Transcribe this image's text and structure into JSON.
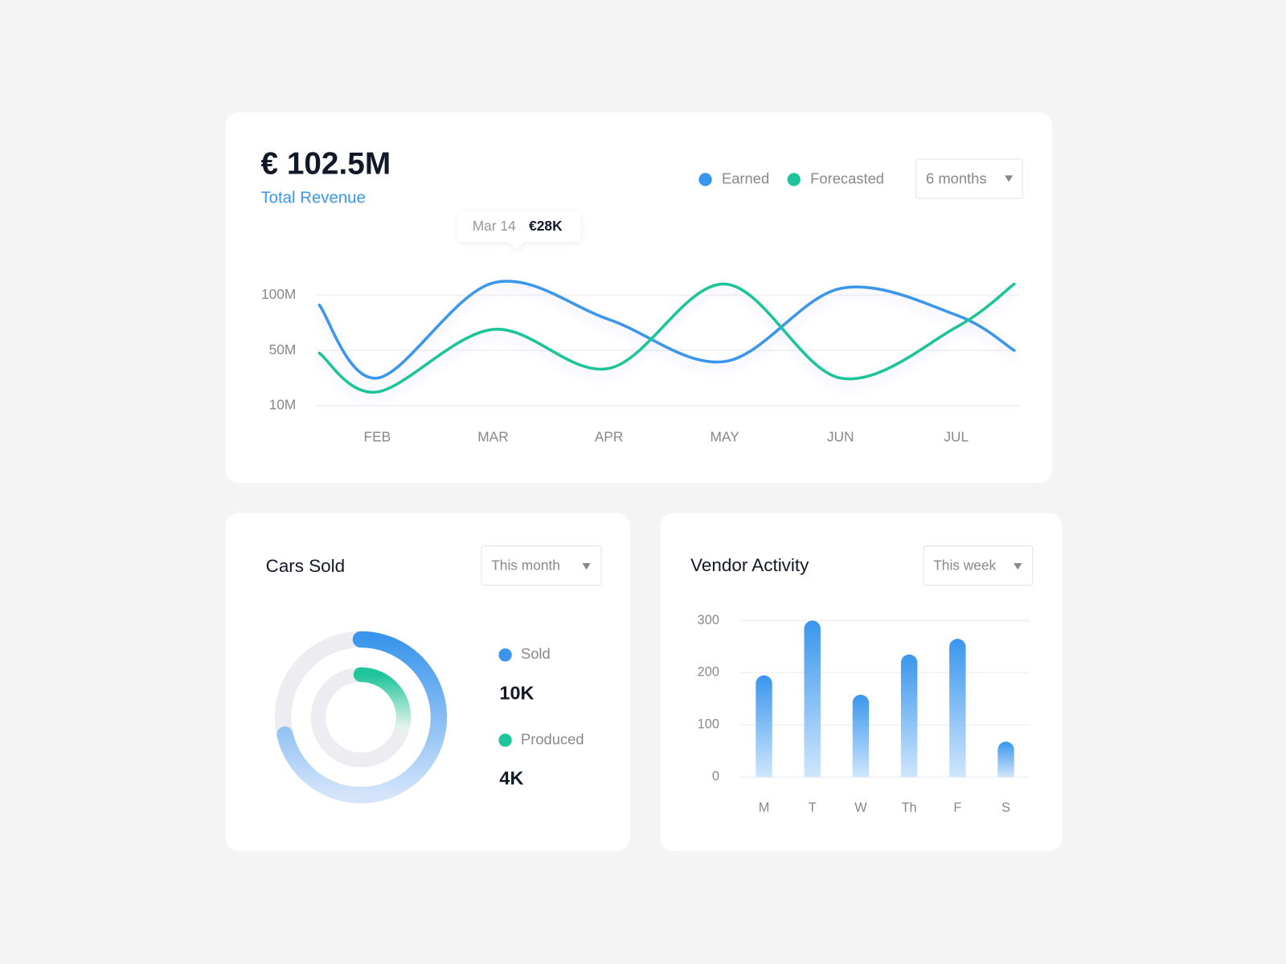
{
  "chart_data": [
    {
      "type": "line",
      "headline": "€ 102.5M",
      "subtitle": "Total Revenue",
      "dropdown": "6 months",
      "tooltip": {
        "date": "Mar 14",
        "value": "€28K"
      },
      "categories": [
        null,
        "FEB",
        "MAR",
        "APR",
        "MAY",
        "JUN",
        "JUL",
        null
      ],
      "series": [
        {
          "name": "Earned",
          "color": "#3a96ec",
          "values": [
            91,
            30,
            111,
            78,
            42,
            106,
            82,
            50
          ]
        },
        {
          "name": "Forecasted",
          "color": "#1ec49a",
          "values": [
            48,
            20,
            69,
            37,
            110,
            30,
            71,
            110
          ]
        }
      ],
      "ylim": [
        10,
        130
      ],
      "yticks": [
        {
          "value": 10,
          "label": "10M"
        },
        {
          "value": 50,
          "label": "50M"
        },
        {
          "value": 100,
          "label": "100M"
        }
      ],
      "grid": true
    },
    {
      "type": "donut",
      "title": "Cars Sold",
      "dropdown": "This month",
      "categories": [
        "Sold",
        "Produced"
      ],
      "values": [
        10000,
        4000
      ],
      "value_labels": [
        "10K",
        "4K"
      ],
      "colors": [
        "#3a96ec",
        "#1ec49a"
      ]
    },
    {
      "type": "bar",
      "title": "Vendor Activity",
      "dropdown": "This week",
      "categories": [
        "M",
        "T",
        "W",
        "Th",
        "F",
        "S"
      ],
      "values": [
        195,
        300,
        158,
        235,
        265,
        68
      ],
      "color": "#3a96ec",
      "ylim": [
        0,
        300
      ],
      "yticks": [
        0,
        100,
        200,
        300
      ],
      "grid": true
    }
  ]
}
